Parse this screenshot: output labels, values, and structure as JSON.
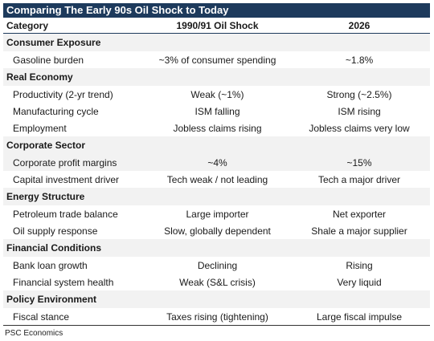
{
  "title": "Comparing The Early 90s Oil Shock to Today",
  "header": {
    "category": "Category",
    "col1": "1990/91 Oil Shock",
    "col2": "2026"
  },
  "sections": [
    {
      "name": "Consumer Exposure",
      "rows": [
        [
          "Gasoline burden",
          "~3% of consumer spending",
          "~1.8%"
        ]
      ]
    },
    {
      "name": "Real Economy",
      "rows": [
        [
          "Productivity (2-yr trend)",
          "Weak (~1%)",
          "Strong (~2.5%)"
        ],
        [
          "Manufacturing cycle",
          "ISM falling",
          "ISM rising"
        ],
        [
          "Employment",
          "Jobless claims rising",
          "Jobless claims very low"
        ]
      ]
    },
    {
      "name": "Corporate Sector",
      "rows": [
        [
          "Corporate profit margins",
          "~4%",
          "~15%"
        ],
        [
          "Capital investment driver",
          "Tech weak / not leading",
          "Tech a major driver"
        ]
      ]
    },
    {
      "name": "Energy Structure",
      "rows": [
        [
          "Petroleum trade balance",
          "Large importer",
          "Net exporter"
        ],
        [
          "Oil supply response",
          "Slow, globally dependent",
          "Shale a major supplier"
        ]
      ]
    },
    {
      "name": "Financial Conditions",
      "rows": [
        [
          "Bank loan growth",
          "Declining",
          "Rising"
        ],
        [
          "Financial system health",
          "Weak (S&L crisis)",
          "Very liquid"
        ]
      ]
    },
    {
      "name": "Policy Environment",
      "rows": [
        [
          "Fiscal stance",
          "Taxes rising (tightening)",
          "Large fiscal impulse"
        ]
      ]
    }
  ],
  "footer": "PSC Economics"
}
